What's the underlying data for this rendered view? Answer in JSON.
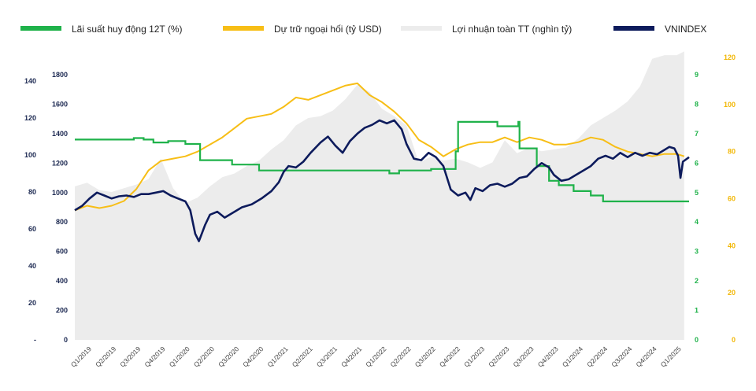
{
  "chart_data": {
    "type": "line",
    "legend_placement": "top",
    "grid": false,
    "colors": {
      "deposit_rate": "#1fb24a",
      "fx_reserves": "#f7be16",
      "profit": "#ececec",
      "vnindex": "#0d1b5c",
      "axis_profit": "#1a2750",
      "axis_vnindex": "#1a2750",
      "axis_rate": "#1fb24a",
      "axis_reserves": "#f2b705"
    },
    "categories": [
      "Q1/2019",
      "Q2/2019",
      "Q3/2019",
      "Q4/2019",
      "Q1/2020",
      "Q2/2020",
      "Q3/2020",
      "Q4/2020",
      "Q1/2021",
      "Q2/2021",
      "Q3/2021",
      "Q4/2021",
      "Q1/2022",
      "Q2/2022",
      "Q3/2022",
      "Q4/2022",
      "Q1/2023",
      "Q2/2023",
      "Q3/2023",
      "Q4/2023",
      "Q1/2024",
      "Q2/2024",
      "Q3/2024",
      "Q4/2024",
      "Q1/2025"
    ],
    "axes": {
      "profit": {
        "range": [
          0,
          140
        ],
        "ticks": [
          "-",
          "20",
          "40",
          "60",
          "80",
          "100",
          "120",
          "140"
        ]
      },
      "vnindex": {
        "range": [
          0,
          1800
        ],
        "ticks": [
          "0",
          "200",
          "400",
          "600",
          "800",
          "1000",
          "1200",
          "1400",
          "1600",
          "1800"
        ]
      },
      "rate": {
        "range": [
          0,
          9
        ],
        "ticks": [
          "0",
          "1",
          "2",
          "3",
          "4",
          "5",
          "6",
          "7",
          "8",
          "9"
        ]
      },
      "reserves": {
        "range": [
          0,
          120
        ],
        "ticks": [
          "0",
          "20",
          "40",
          "60",
          "80",
          "100",
          "120"
        ]
      }
    },
    "series": [
      {
        "name": "Lãi suất huy động 12T (%)",
        "axis": "rate",
        "style": "step",
        "points": [
          [
            0,
            6.8
          ],
          [
            2.4,
            6.8
          ],
          [
            2.4,
            6.85
          ],
          [
            2.8,
            6.85
          ],
          [
            2.8,
            6.8
          ],
          [
            3.2,
            6.8
          ],
          [
            3.2,
            6.7
          ],
          [
            3.8,
            6.7
          ],
          [
            3.8,
            6.75
          ],
          [
            4.5,
            6.75
          ],
          [
            4.5,
            6.65
          ],
          [
            5.1,
            6.65
          ],
          [
            5.1,
            6.1
          ],
          [
            6.4,
            6.1
          ],
          [
            6.4,
            5.95
          ],
          [
            7.5,
            5.95
          ],
          [
            7.5,
            5.75
          ],
          [
            11.3,
            5.75
          ],
          [
            11.3,
            5.75
          ],
          [
            12.8,
            5.75
          ],
          [
            12.8,
            5.65
          ],
          [
            13.2,
            5.65
          ],
          [
            13.2,
            5.75
          ],
          [
            14.5,
            5.75
          ],
          [
            14.5,
            5.8
          ],
          [
            15.5,
            5.8
          ],
          [
            15.5,
            6.4
          ],
          [
            15.6,
            6.4
          ],
          [
            15.6,
            7.4
          ],
          [
            17.2,
            7.4
          ],
          [
            17.2,
            7.25
          ],
          [
            18.05,
            7.25
          ],
          [
            18.05,
            7.4
          ],
          [
            18.1,
            7.4
          ],
          [
            18.1,
            6.5
          ],
          [
            18.8,
            6.5
          ],
          [
            18.8,
            5.9
          ],
          [
            19.3,
            5.9
          ],
          [
            19.3,
            5.4
          ],
          [
            19.7,
            5.4
          ],
          [
            19.7,
            5.25
          ],
          [
            20.3,
            5.25
          ],
          [
            20.3,
            5.05
          ],
          [
            21.0,
            5.05
          ],
          [
            21.0,
            4.9
          ],
          [
            21.5,
            4.9
          ],
          [
            21.5,
            4.7
          ],
          [
            25,
            4.7
          ]
        ]
      },
      {
        "name": "Dự trữ ngoại hối (tỷ USD)",
        "axis": "reserves",
        "style": "line",
        "points": [
          [
            0,
            55
          ],
          [
            0.5,
            57
          ],
          [
            1,
            56
          ],
          [
            1.5,
            57
          ],
          [
            2,
            59
          ],
          [
            2.5,
            64
          ],
          [
            3,
            72
          ],
          [
            3.5,
            76
          ],
          [
            4,
            77
          ],
          [
            4.5,
            78
          ],
          [
            5,
            80
          ],
          [
            5.5,
            83
          ],
          [
            6,
            86
          ],
          [
            6.5,
            90
          ],
          [
            7,
            94
          ],
          [
            7.5,
            95
          ],
          [
            8,
            96
          ],
          [
            8.5,
            99
          ],
          [
            9,
            103
          ],
          [
            9.5,
            102
          ],
          [
            10,
            104
          ],
          [
            10.5,
            106
          ],
          [
            11,
            108
          ],
          [
            11.5,
            109
          ],
          [
            12,
            104
          ],
          [
            12.5,
            101
          ],
          [
            13,
            97
          ],
          [
            13.5,
            92
          ],
          [
            14,
            85
          ],
          [
            14.5,
            82
          ],
          [
            15,
            78
          ],
          [
            15.5,
            81
          ],
          [
            16,
            83
          ],
          [
            16.5,
            84
          ],
          [
            17,
            84
          ],
          [
            17.5,
            86
          ],
          [
            18,
            84
          ],
          [
            18.5,
            86
          ],
          [
            19,
            85
          ],
          [
            19.5,
            83
          ],
          [
            20,
            83
          ],
          [
            20.5,
            84
          ],
          [
            21,
            86
          ],
          [
            21.5,
            85
          ],
          [
            22,
            82
          ],
          [
            22.5,
            80
          ],
          [
            23,
            79
          ],
          [
            23.5,
            78
          ],
          [
            24,
            79
          ],
          [
            24.5,
            79
          ],
          [
            24.8,
            78
          ]
        ]
      },
      {
        "name": "Lợi nhuận toàn TT (nghìn tỷ)",
        "axis": "profit",
        "style": "area",
        "points": [
          [
            0,
            83
          ],
          [
            0.5,
            85
          ],
          [
            1,
            81
          ],
          [
            1.5,
            80
          ],
          [
            2,
            82
          ],
          [
            2.5,
            84
          ],
          [
            3,
            87
          ],
          [
            3.5,
            98
          ],
          [
            4,
            82
          ],
          [
            4.5,
            74
          ],
          [
            5,
            77
          ],
          [
            5.5,
            83
          ],
          [
            6,
            88
          ],
          [
            6.5,
            90
          ],
          [
            7,
            94
          ],
          [
            7.5,
            97
          ],
          [
            8,
            103
          ],
          [
            8.5,
            108
          ],
          [
            9,
            116
          ],
          [
            9.5,
            120
          ],
          [
            10,
            121
          ],
          [
            10.5,
            124
          ],
          [
            11,
            130
          ],
          [
            11.5,
            138
          ],
          [
            12,
            134
          ],
          [
            12.5,
            125
          ],
          [
            13,
            121
          ],
          [
            13.5,
            116
          ],
          [
            14,
            96
          ],
          [
            14.5,
            99
          ],
          [
            15,
            97
          ],
          [
            15.5,
            98
          ],
          [
            16,
            96
          ],
          [
            16.5,
            93
          ],
          [
            17,
            96
          ],
          [
            17.5,
            108
          ],
          [
            18,
            101
          ],
          [
            18.5,
            104
          ],
          [
            19,
            102
          ],
          [
            19.5,
            103
          ],
          [
            20,
            104
          ],
          [
            20.5,
            109
          ],
          [
            21,
            116
          ],
          [
            21.5,
            120
          ],
          [
            22,
            124
          ],
          [
            22.5,
            129
          ],
          [
            23,
            137
          ],
          [
            23.5,
            152
          ],
          [
            24,
            154
          ],
          [
            24.5,
            154
          ],
          [
            24.8,
            156
          ]
        ]
      },
      {
        "name": "VNINDEX",
        "axis": "vnindex",
        "style": "line",
        "points": [
          [
            0,
            880
          ],
          [
            0.3,
            910
          ],
          [
            0.6,
            960
          ],
          [
            0.9,
            1000
          ],
          [
            1.2,
            980
          ],
          [
            1.5,
            960
          ],
          [
            1.8,
            975
          ],
          [
            2.1,
            980
          ],
          [
            2.4,
            970
          ],
          [
            2.7,
            990
          ],
          [
            3.0,
            990
          ],
          [
            3.3,
            1000
          ],
          [
            3.6,
            1010
          ],
          [
            3.9,
            980
          ],
          [
            4.2,
            960
          ],
          [
            4.5,
            940
          ],
          [
            4.7,
            880
          ],
          [
            4.9,
            720
          ],
          [
            5.05,
            670
          ],
          [
            5.3,
            780
          ],
          [
            5.5,
            850
          ],
          [
            5.8,
            870
          ],
          [
            6.1,
            830
          ],
          [
            6.4,
            860
          ],
          [
            6.8,
            900
          ],
          [
            7.2,
            920
          ],
          [
            7.6,
            960
          ],
          [
            8.0,
            1010
          ],
          [
            8.3,
            1070
          ],
          [
            8.5,
            1140
          ],
          [
            8.7,
            1180
          ],
          [
            9.0,
            1170
          ],
          [
            9.3,
            1210
          ],
          [
            9.6,
            1270
          ],
          [
            10.0,
            1340
          ],
          [
            10.3,
            1380
          ],
          [
            10.6,
            1320
          ],
          [
            10.9,
            1270
          ],
          [
            11.2,
            1350
          ],
          [
            11.5,
            1400
          ],
          [
            11.8,
            1440
          ],
          [
            12.1,
            1460
          ],
          [
            12.4,
            1490
          ],
          [
            12.7,
            1470
          ],
          [
            13.0,
            1490
          ],
          [
            13.3,
            1430
          ],
          [
            13.5,
            1330
          ],
          [
            13.8,
            1230
          ],
          [
            14.1,
            1220
          ],
          [
            14.4,
            1270
          ],
          [
            14.7,
            1240
          ],
          [
            15.0,
            1180
          ],
          [
            15.3,
            1020
          ],
          [
            15.6,
            980
          ],
          [
            15.9,
            1000
          ],
          [
            16.1,
            950
          ],
          [
            16.3,
            1030
          ],
          [
            16.6,
            1010
          ],
          [
            16.9,
            1050
          ],
          [
            17.2,
            1060
          ],
          [
            17.5,
            1040
          ],
          [
            17.8,
            1060
          ],
          [
            18.1,
            1100
          ],
          [
            18.4,
            1110
          ],
          [
            18.7,
            1160
          ],
          [
            19.0,
            1200
          ],
          [
            19.3,
            1170
          ],
          [
            19.5,
            1120
          ],
          [
            19.8,
            1080
          ],
          [
            20.1,
            1090
          ],
          [
            20.4,
            1120
          ],
          [
            20.7,
            1150
          ],
          [
            21.0,
            1180
          ],
          [
            21.3,
            1230
          ],
          [
            21.6,
            1250
          ],
          [
            21.9,
            1230
          ],
          [
            22.2,
            1270
          ],
          [
            22.5,
            1240
          ],
          [
            22.8,
            1270
          ],
          [
            23.1,
            1250
          ],
          [
            23.4,
            1270
          ],
          [
            23.7,
            1260
          ],
          [
            24.0,
            1290
          ],
          [
            24.2,
            1310
          ],
          [
            24.4,
            1300
          ],
          [
            24.55,
            1250
          ],
          [
            24.65,
            1100
          ],
          [
            24.75,
            1210
          ],
          [
            25.0,
            1240
          ]
        ]
      }
    ]
  }
}
